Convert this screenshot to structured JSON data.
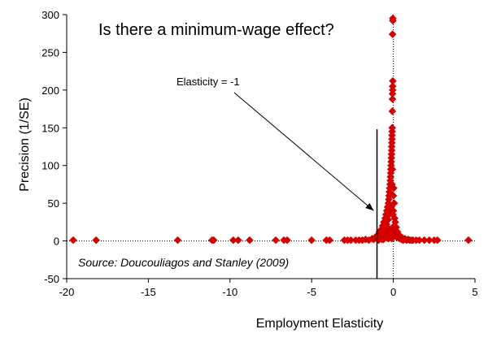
{
  "chart_data": {
    "type": "scatter",
    "title": "Is there a minimum-wage effect?",
    "xlabel": "Employment Elasticity",
    "ylabel": "Precision (1/SE)",
    "xlim": [
      -20,
      5
    ],
    "ylim": [
      -50,
      300
    ],
    "xticks": [
      "-20",
      "-15",
      "-10",
      "-5",
      "0",
      "5"
    ],
    "yticks": [
      "-50",
      "0",
      "50",
      "100",
      "150",
      "200",
      "250",
      "300"
    ],
    "annotations": {
      "elasticity_label": "Elasticity = -1",
      "elasticity_line_x": -1,
      "source": "Source: Doucouliagos and Stanley (2009)"
    },
    "reference_lines": {
      "x": 0,
      "y": 0,
      "style": "dotted"
    },
    "marker": {
      "shape": "diamond",
      "color": "#d40000"
    },
    "points": [
      [
        -19.6,
        1
      ],
      [
        -18.2,
        1
      ],
      [
        -13.2,
        1
      ],
      [
        -11.1,
        1
      ],
      [
        -11.0,
        1
      ],
      [
        -9.8,
        1
      ],
      [
        -9.5,
        1
      ],
      [
        -8.8,
        1
      ],
      [
        -7.2,
        1
      ],
      [
        -6.7,
        1
      ],
      [
        -6.5,
        1
      ],
      [
        -5.0,
        1
      ],
      [
        -4.1,
        1
      ],
      [
        -3.9,
        1
      ],
      [
        -3.0,
        1
      ],
      [
        -2.8,
        1
      ],
      [
        -2.6,
        1
      ],
      [
        -2.3,
        1
      ],
      [
        -2.1,
        1
      ],
      [
        -1.9,
        1
      ],
      [
        -1.7,
        2
      ],
      [
        -1.5,
        1
      ],
      [
        -1.3,
        3
      ],
      [
        -1.2,
        2
      ],
      [
        -1.1,
        5
      ],
      [
        -1.0,
        3
      ],
      [
        -0.95,
        8
      ],
      [
        -0.9,
        4
      ],
      [
        -0.85,
        12
      ],
      [
        -0.8,
        6
      ],
      [
        -0.75,
        15
      ],
      [
        -0.7,
        10
      ],
      [
        -0.65,
        20
      ],
      [
        -0.6,
        8
      ],
      [
        -0.58,
        25
      ],
      [
        -0.55,
        14
      ],
      [
        -0.5,
        30
      ],
      [
        -0.48,
        18
      ],
      [
        -0.45,
        35
      ],
      [
        -0.42,
        22
      ],
      [
        -0.4,
        40
      ],
      [
        -0.38,
        12
      ],
      [
        -0.35,
        45
      ],
      [
        -0.32,
        28
      ],
      [
        -0.3,
        50
      ],
      [
        -0.28,
        55
      ],
      [
        -0.26,
        60
      ],
      [
        -0.25,
        35
      ],
      [
        -0.24,
        65
      ],
      [
        -0.22,
        70
      ],
      [
        -0.2,
        75
      ],
      [
        -0.19,
        42
      ],
      [
        -0.18,
        80
      ],
      [
        -0.17,
        85
      ],
      [
        -0.16,
        90
      ],
      [
        -0.15,
        95
      ],
      [
        -0.14,
        100
      ],
      [
        -0.13,
        105
      ],
      [
        -0.12,
        110
      ],
      [
        -0.11,
        115
      ],
      [
        -0.1,
        120
      ],
      [
        -0.1,
        125
      ],
      [
        -0.09,
        130
      ],
      [
        -0.08,
        135
      ],
      [
        -0.08,
        140
      ],
      [
        -0.07,
        145
      ],
      [
        -0.07,
        150
      ],
      [
        -0.06,
        172
      ],
      [
        -0.05,
        188
      ],
      [
        -0.05,
        195
      ],
      [
        -0.04,
        200
      ],
      [
        -0.04,
        205
      ],
      [
        -0.03,
        212
      ],
      [
        -0.05,
        274
      ],
      [
        -0.03,
        292
      ],
      [
        -0.03,
        295
      ],
      [
        -0.2,
        5
      ],
      [
        -0.15,
        8
      ],
      [
        -0.1,
        3
      ],
      [
        -0.05,
        10
      ],
      [
        0.0,
        15
      ],
      [
        0.0,
        40
      ],
      [
        0.0,
        60
      ],
      [
        0.05,
        20
      ],
      [
        0.05,
        50
      ],
      [
        0.08,
        30
      ],
      [
        0.1,
        12
      ],
      [
        0.12,
        25
      ],
      [
        0.15,
        8
      ],
      [
        0.18,
        18
      ],
      [
        0.2,
        5
      ],
      [
        0.25,
        12
      ],
      [
        0.3,
        4
      ],
      [
        0.35,
        8
      ],
      [
        0.4,
        3
      ],
      [
        0.45,
        6
      ],
      [
        0.5,
        2
      ],
      [
        0.55,
        4
      ],
      [
        0.6,
        1
      ],
      [
        0.7,
        3
      ],
      [
        0.8,
        1
      ],
      [
        0.9,
        2
      ],
      [
        1.0,
        1
      ],
      [
        1.1,
        1
      ],
      [
        1.2,
        1
      ],
      [
        1.4,
        1
      ],
      [
        1.6,
        1
      ],
      [
        1.9,
        1
      ],
      [
        2.2,
        1
      ],
      [
        2.5,
        1
      ],
      [
        2.7,
        1
      ],
      [
        4.6,
        1
      ],
      [
        -0.9,
        1
      ],
      [
        -0.6,
        2
      ],
      [
        -0.3,
        3
      ],
      [
        -0.2,
        15
      ],
      [
        -0.12,
        45
      ],
      [
        -0.08,
        75
      ],
      [
        -0.06,
        95
      ],
      [
        -0.02,
        35
      ],
      [
        0.02,
        70
      ],
      [
        -0.35,
        18
      ],
      [
        -0.45,
        8
      ],
      [
        -0.55,
        5
      ],
      [
        -0.7,
        2
      ]
    ]
  }
}
